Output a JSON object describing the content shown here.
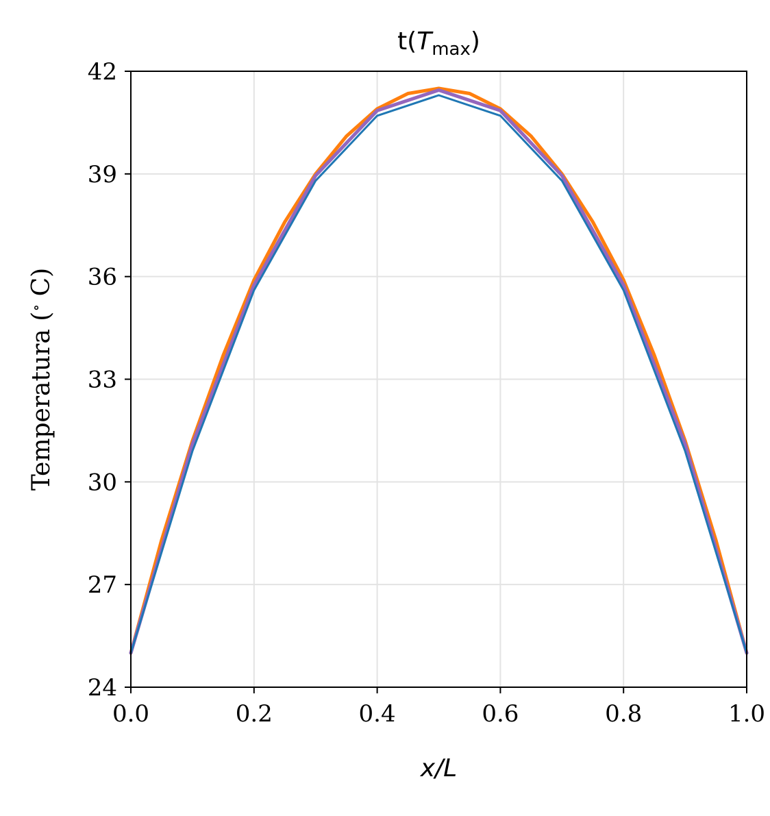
{
  "chart_data": {
    "type": "line",
    "title": "t(T_max)",
    "title_parts": {
      "main": "t(",
      "italic": "T",
      "sub": "max",
      "close": ")"
    },
    "xlabel": "x/L",
    "ylabel": "Temperatura (° C)",
    "ylabel_parts": {
      "pre": "Temperatura (",
      "deg": "∘",
      "post": " C)"
    },
    "xlim": [
      0.0,
      1.0
    ],
    "ylim": [
      24,
      42
    ],
    "xticks": [
      "0.0",
      "0.2",
      "0.4",
      "0.6",
      "0.8",
      "1.0"
    ],
    "yticks": [
      "24",
      "27",
      "30",
      "33",
      "36",
      "39",
      "42"
    ],
    "grid": true,
    "series": [
      {
        "color": "#ff7f0e",
        "stroke": 5,
        "x": [
          0.0,
          0.05,
          0.1,
          0.15,
          0.2,
          0.25,
          0.3,
          0.35,
          0.4,
          0.45,
          0.5,
          0.55,
          0.6,
          0.65,
          0.7,
          0.75,
          0.8,
          0.85,
          0.9,
          0.95,
          1.0
        ],
        "y": [
          25.0,
          28.3,
          31.2,
          33.7,
          35.9,
          37.6,
          39.0,
          40.1,
          40.9,
          41.35,
          41.5,
          41.35,
          40.9,
          40.1,
          39.0,
          37.6,
          35.9,
          33.7,
          31.2,
          28.3,
          25.0
        ]
      },
      {
        "color": "#9467bd",
        "stroke": 5,
        "x": [
          0.0,
          0.1,
          0.2,
          0.3,
          0.4,
          0.5,
          0.6,
          0.7,
          0.8,
          0.9,
          1.0
        ],
        "y": [
          25.0,
          31.1,
          35.75,
          38.95,
          40.85,
          41.45,
          40.85,
          38.95,
          35.75,
          31.1,
          25.0
        ]
      },
      {
        "color": "#1f77b4",
        "stroke": 3,
        "x": [
          0.0,
          0.1,
          0.2,
          0.3,
          0.4,
          0.5,
          0.6,
          0.7,
          0.8,
          0.9,
          1.0
        ],
        "y": [
          25.0,
          30.9,
          35.6,
          38.8,
          40.7,
          41.3,
          40.7,
          38.8,
          35.6,
          30.9,
          25.0
        ]
      }
    ]
  }
}
